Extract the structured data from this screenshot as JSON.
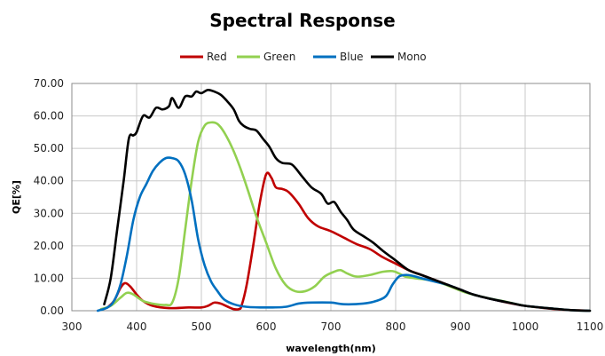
{
  "chart_data": {
    "type": "line",
    "title": "Spectral Response",
    "xlabel": "wavelength(nm)",
    "ylabel": "QE[%]",
    "xlim": [
      300,
      1100
    ],
    "ylim": [
      0,
      70
    ],
    "x_ticks": [
      "300",
      "400",
      "500",
      "600",
      "700",
      "800",
      "900",
      "1000",
      "1100"
    ],
    "y_ticks": [
      "0.00",
      "10.00",
      "20.00",
      "30.00",
      "40.00",
      "50.00",
      "60.00",
      "70.00"
    ],
    "grid": true,
    "legend_position": "top-center",
    "series": [
      {
        "name": "Red",
        "color": "#c00000",
        "points": [
          [
            355,
            1
          ],
          [
            365,
            3
          ],
          [
            375,
            7
          ],
          [
            382,
            8.5
          ],
          [
            390,
            7.5
          ],
          [
            400,
            5
          ],
          [
            410,
            3
          ],
          [
            425,
            1.5
          ],
          [
            450,
            0.8
          ],
          [
            480,
            1
          ],
          [
            500,
            1
          ],
          [
            510,
            1.5
          ],
          [
            520,
            2.5
          ],
          [
            530,
            2.2
          ],
          [
            540,
            1.3
          ],
          [
            550,
            0.5
          ],
          [
            558,
            0.5
          ],
          [
            562,
            1.5
          ],
          [
            570,
            8
          ],
          [
            580,
            20
          ],
          [
            590,
            33
          ],
          [
            600,
            42
          ],
          [
            608,
            41
          ],
          [
            615,
            38
          ],
          [
            625,
            37.5
          ],
          [
            635,
            36.5
          ],
          [
            650,
            33
          ],
          [
            665,
            28.5
          ],
          [
            680,
            26
          ],
          [
            700,
            24.5
          ],
          [
            720,
            22.5
          ],
          [
            740,
            20.5
          ],
          [
            760,
            19
          ],
          [
            780,
            16.5
          ],
          [
            800,
            14.5
          ],
          [
            820,
            12.5
          ],
          [
            840,
            11
          ],
          [
            860,
            9.5
          ],
          [
            880,
            8
          ],
          [
            900,
            6.5
          ],
          [
            920,
            5
          ],
          [
            950,
            3.5
          ],
          [
            980,
            2.2
          ],
          [
            1000,
            1.5
          ],
          [
            1030,
            0.8
          ],
          [
            1060,
            0.3
          ],
          [
            1100,
            0
          ]
        ]
      },
      {
        "name": "Green",
        "color": "#92d050",
        "points": [
          [
            345,
            0.5
          ],
          [
            360,
            1.5
          ],
          [
            375,
            4
          ],
          [
            385,
            5.5
          ],
          [
            395,
            5
          ],
          [
            410,
            3
          ],
          [
            430,
            2
          ],
          [
            445,
            1.8
          ],
          [
            455,
            2.5
          ],
          [
            465,
            10
          ],
          [
            475,
            25
          ],
          [
            485,
            40
          ],
          [
            495,
            52
          ],
          [
            505,
            57
          ],
          [
            515,
            58
          ],
          [
            525,
            57.5
          ],
          [
            535,
            55
          ],
          [
            548,
            50
          ],
          [
            560,
            44
          ],
          [
            572,
            37
          ],
          [
            585,
            29
          ],
          [
            600,
            21
          ],
          [
            615,
            13
          ],
          [
            630,
            8
          ],
          [
            645,
            6
          ],
          [
            660,
            6
          ],
          [
            675,
            7.5
          ],
          [
            690,
            10.5
          ],
          [
            705,
            12
          ],
          [
            715,
            12.5
          ],
          [
            725,
            11.5
          ],
          [
            740,
            10.5
          ],
          [
            760,
            11
          ],
          [
            780,
            12
          ],
          [
            795,
            12.2
          ],
          [
            805,
            11.5
          ],
          [
            815,
            10.5
          ],
          [
            830,
            10
          ],
          [
            850,
            9.5
          ],
          [
            870,
            8.5
          ],
          [
            890,
            7
          ],
          [
            910,
            5.5
          ],
          [
            940,
            4
          ],
          [
            970,
            2.8
          ],
          [
            1000,
            1.5
          ],
          [
            1040,
            0.7
          ],
          [
            1070,
            0.2
          ],
          [
            1100,
            0
          ]
        ]
      },
      {
        "name": "Blue",
        "color": "#0070c0",
        "points": [
          [
            340,
            0
          ],
          [
            355,
            1
          ],
          [
            365,
            3
          ],
          [
            375,
            8
          ],
          [
            385,
            17
          ],
          [
            395,
            28
          ],
          [
            405,
            35
          ],
          [
            415,
            39
          ],
          [
            425,
            43
          ],
          [
            435,
            45.5
          ],
          [
            445,
            47
          ],
          [
            455,
            47
          ],
          [
            465,
            46
          ],
          [
            475,
            42
          ],
          [
            485,
            34
          ],
          [
            495,
            22
          ],
          [
            505,
            14
          ],
          [
            515,
            9
          ],
          [
            525,
            6
          ],
          [
            535,
            3.5
          ],
          [
            550,
            2
          ],
          [
            570,
            1.2
          ],
          [
            600,
            1
          ],
          [
            630,
            1.2
          ],
          [
            650,
            2.2
          ],
          [
            670,
            2.5
          ],
          [
            700,
            2.5
          ],
          [
            720,
            2
          ],
          [
            750,
            2.2
          ],
          [
            770,
            3
          ],
          [
            785,
            4.5
          ],
          [
            795,
            8
          ],
          [
            805,
            10.5
          ],
          [
            815,
            11
          ],
          [
            825,
            10.8
          ],
          [
            840,
            10
          ],
          [
            860,
            9
          ],
          [
            880,
            8
          ],
          [
            900,
            6.5
          ],
          [
            920,
            5
          ],
          [
            950,
            3.5
          ],
          [
            980,
            2.3
          ],
          [
            1000,
            1.5
          ],
          [
            1040,
            0.7
          ],
          [
            1070,
            0.2
          ],
          [
            1100,
            0
          ]
        ]
      },
      {
        "name": "Mono",
        "color": "#000000",
        "points": [
          [
            350,
            2
          ],
          [
            360,
            10
          ],
          [
            370,
            25
          ],
          [
            380,
            40
          ],
          [
            388,
            53
          ],
          [
            395,
            54
          ],
          [
            400,
            55
          ],
          [
            410,
            60
          ],
          [
            420,
            59.5
          ],
          [
            430,
            62.5
          ],
          [
            440,
            62
          ],
          [
            450,
            63
          ],
          [
            455,
            65.5
          ],
          [
            465,
            62.5
          ],
          [
            475,
            66
          ],
          [
            485,
            66
          ],
          [
            492,
            67.5
          ],
          [
            500,
            67
          ],
          [
            510,
            68
          ],
          [
            520,
            67.5
          ],
          [
            530,
            66.5
          ],
          [
            540,
            64.5
          ],
          [
            550,
            62
          ],
          [
            558,
            58.5
          ],
          [
            565,
            57
          ],
          [
            575,
            56
          ],
          [
            585,
            55.5
          ],
          [
            595,
            53
          ],
          [
            605,
            50.5
          ],
          [
            615,
            47
          ],
          [
            625,
            45.5
          ],
          [
            640,
            45
          ],
          [
            655,
            41.5
          ],
          [
            670,
            38
          ],
          [
            685,
            36
          ],
          [
            695,
            33
          ],
          [
            705,
            33.5
          ],
          [
            715,
            30.5
          ],
          [
            725,
            28
          ],
          [
            735,
            25
          ],
          [
            750,
            23
          ],
          [
            765,
            21
          ],
          [
            780,
            18.5
          ],
          [
            800,
            15.5
          ],
          [
            820,
            12.5
          ],
          [
            840,
            11
          ],
          [
            860,
            9.5
          ],
          [
            880,
            8
          ],
          [
            900,
            6.5
          ],
          [
            920,
            5
          ],
          [
            950,
            3.5
          ],
          [
            980,
            2.3
          ],
          [
            1000,
            1.5
          ],
          [
            1040,
            0.7
          ],
          [
            1070,
            0.2
          ],
          [
            1100,
            0
          ]
        ]
      }
    ]
  }
}
